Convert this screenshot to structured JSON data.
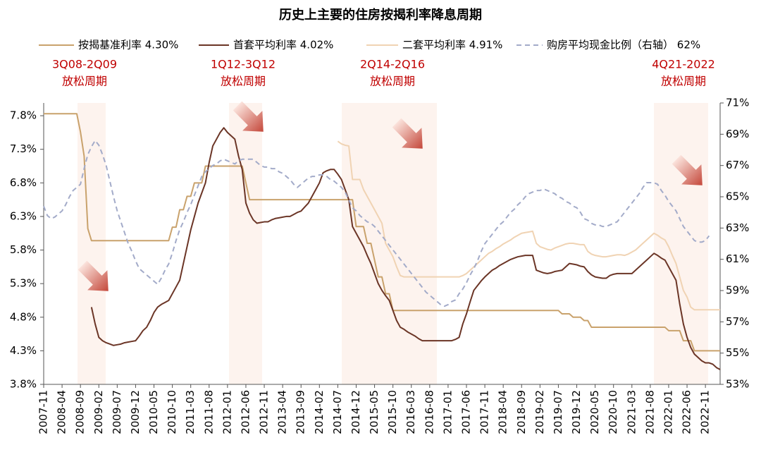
{
  "chart_data": {
    "type": "line",
    "title": "历史上主要的住房按揭利率降息周期",
    "categories": [
      "2007-11",
      null,
      null,
      null,
      null,
      "2008-04",
      null,
      null,
      null,
      null,
      "2008-09",
      null,
      null,
      null,
      null,
      "2009-02",
      null,
      null,
      null,
      null,
      "2009-07",
      null,
      null,
      null,
      null,
      "2009-12",
      null,
      null,
      null,
      null,
      "2010-05",
      null,
      null,
      null,
      null,
      "2010-10",
      null,
      null,
      null,
      null,
      "2011-03",
      null,
      null,
      null,
      null,
      "2011-08",
      null,
      null,
      null,
      null,
      "2012-01",
      null,
      null,
      null,
      null,
      "2012-06",
      null,
      null,
      null,
      null,
      "2012-11",
      null,
      null,
      null,
      null,
      "2013-04",
      null,
      null,
      null,
      null,
      "2013-09",
      null,
      null,
      null,
      null,
      "2014-02",
      null,
      null,
      null,
      null,
      "2014-07",
      null,
      null,
      null,
      null,
      "2014-12",
      null,
      null,
      null,
      null,
      "2015-05",
      null,
      null,
      null,
      null,
      "2015-10",
      null,
      null,
      null,
      null,
      "2016-03",
      null,
      null,
      null,
      null,
      "2016-08",
      null,
      null,
      null,
      null,
      "2017-01",
      null,
      null,
      null,
      null,
      "2017-06",
      null,
      null,
      null,
      null,
      "2017-11",
      null,
      null,
      null,
      null,
      "2018-04",
      null,
      null,
      null,
      null,
      "2018-09",
      null,
      null,
      null,
      null,
      "2019-02",
      null,
      null,
      null,
      null,
      "2019-07",
      null,
      null,
      null,
      null,
      "2019-12",
      null,
      null,
      null,
      null,
      "2020-05",
      null,
      null,
      null,
      null,
      "2020-10",
      null,
      null,
      null,
      null,
      "2021-03",
      null,
      null,
      null,
      null,
      "2021-08",
      null,
      null,
      null,
      null,
      "2022-01",
      null,
      null,
      null,
      null,
      "2022-06",
      null,
      null,
      null,
      null,
      "2022-11",
      null,
      null,
      null,
      null
    ],
    "series": [
      {
        "name": "按揭基准利率 4.30%",
        "color": "#c9a26c",
        "values": [
          7.83,
          7.83,
          7.83,
          7.83,
          7.83,
          7.83,
          7.83,
          7.83,
          7.83,
          7.83,
          7.56,
          7.2,
          6.12,
          5.94,
          5.94,
          5.94,
          5.94,
          5.94,
          5.94,
          5.94,
          5.94,
          5.94,
          5.94,
          5.94,
          5.94,
          5.94,
          5.94,
          5.94,
          5.94,
          5.94,
          5.94,
          5.94,
          5.94,
          5.94,
          5.94,
          6.14,
          6.14,
          6.4,
          6.4,
          6.6,
          6.6,
          6.8,
          6.8,
          6.8,
          7.05,
          7.05,
          7.05,
          7.05,
          7.05,
          7.05,
          7.05,
          7.05,
          7.05,
          7.05,
          7.05,
          6.8,
          6.55,
          6.55,
          6.55,
          6.55,
          6.55,
          6.55,
          6.55,
          6.55,
          6.55,
          6.55,
          6.55,
          6.55,
          6.55,
          6.55,
          6.55,
          6.55,
          6.55,
          6.55,
          6.55,
          6.55,
          6.55,
          6.55,
          6.55,
          6.55,
          6.55,
          6.55,
          6.55,
          6.55,
          6.55,
          6.15,
          6.15,
          6.15,
          5.9,
          5.9,
          5.65,
          5.4,
          5.4,
          5.15,
          5.15,
          4.9,
          4.9,
          4.9,
          4.9,
          4.9,
          4.9,
          4.9,
          4.9,
          4.9,
          4.9,
          4.9,
          4.9,
          4.9,
          4.9,
          4.9,
          4.9,
          4.9,
          4.9,
          4.9,
          4.9,
          4.9,
          4.9,
          4.9,
          4.9,
          4.9,
          4.9,
          4.9,
          4.9,
          4.9,
          4.9,
          4.9,
          4.9,
          4.9,
          4.9,
          4.9,
          4.9,
          4.9,
          4.9,
          4.9,
          4.9,
          4.9,
          4.9,
          4.9,
          4.9,
          4.9,
          4.9,
          4.85,
          4.85,
          4.85,
          4.8,
          4.8,
          4.8,
          4.75,
          4.75,
          4.65,
          4.65,
          4.65,
          4.65,
          4.65,
          4.65,
          4.65,
          4.65,
          4.65,
          4.65,
          4.65,
          4.65,
          4.65,
          4.65,
          4.65,
          4.65,
          4.65,
          4.65,
          4.65,
          4.65,
          4.65,
          4.6,
          4.6,
          4.6,
          4.6,
          4.45,
          4.45,
          4.45,
          4.3,
          4.3,
          4.3,
          4.3,
          4.3,
          4.3,
          4.3,
          4.3
        ]
      },
      {
        "name": "首套平均利率 4.02%",
        "color": "#6b3526",
        "values": [
          null,
          null,
          null,
          null,
          null,
          null,
          null,
          null,
          null,
          null,
          null,
          null,
          null,
          4.95,
          4.7,
          4.5,
          4.45,
          4.42,
          4.4,
          4.38,
          4.39,
          4.4,
          4.42,
          4.43,
          4.44,
          4.45,
          4.52,
          4.6,
          4.65,
          4.75,
          4.87,
          4.95,
          4.99,
          5.02,
          5.05,
          5.15,
          5.25,
          5.35,
          5.6,
          5.85,
          6.1,
          6.3,
          6.5,
          6.65,
          6.8,
          7.1,
          7.35,
          7.45,
          7.55,
          7.62,
          7.55,
          7.5,
          7.45,
          7.2,
          7.0,
          6.5,
          6.35,
          6.25,
          6.2,
          6.21,
          6.22,
          6.22,
          6.25,
          6.27,
          6.28,
          6.29,
          6.3,
          6.3,
          6.33,
          6.36,
          6.38,
          6.44,
          6.5,
          6.6,
          6.7,
          6.8,
          6.95,
          6.98,
          7.0,
          7.0,
          6.93,
          6.85,
          6.7,
          6.55,
          6.15,
          6.05,
          5.95,
          5.85,
          5.72,
          5.6,
          5.45,
          5.3,
          5.2,
          5.12,
          5.05,
          4.9,
          4.75,
          4.65,
          4.62,
          4.58,
          4.55,
          4.52,
          4.48,
          4.45,
          4.45,
          4.45,
          4.45,
          4.45,
          4.45,
          4.45,
          4.45,
          4.45,
          4.47,
          4.5,
          4.7,
          4.85,
          5.03,
          5.2,
          5.27,
          5.34,
          5.4,
          5.45,
          5.5,
          5.53,
          5.57,
          5.6,
          5.63,
          5.66,
          5.68,
          5.7,
          5.71,
          5.72,
          5.72,
          5.72,
          5.5,
          5.48,
          5.46,
          5.45,
          5.46,
          5.48,
          5.49,
          5.5,
          5.55,
          5.6,
          5.59,
          5.58,
          5.56,
          5.55,
          5.48,
          5.43,
          5.4,
          5.39,
          5.38,
          5.38,
          5.42,
          5.44,
          5.45,
          5.45,
          5.45,
          5.45,
          5.45,
          5.5,
          5.55,
          5.6,
          5.65,
          5.7,
          5.75,
          5.72,
          5.68,
          5.65,
          5.55,
          5.45,
          5.35,
          5.0,
          4.7,
          4.5,
          4.35,
          4.25,
          4.2,
          4.15,
          4.12,
          4.12,
          4.1,
          4.05,
          4.02
        ]
      },
      {
        "name": "二套平均利率 4.91%",
        "color": "#f0d3b3",
        "values": [
          null,
          null,
          null,
          null,
          null,
          null,
          null,
          null,
          null,
          null,
          null,
          null,
          null,
          null,
          null,
          null,
          null,
          null,
          null,
          null,
          null,
          null,
          null,
          null,
          null,
          null,
          null,
          null,
          null,
          null,
          null,
          null,
          null,
          null,
          null,
          null,
          null,
          null,
          null,
          null,
          null,
          null,
          null,
          null,
          null,
          null,
          null,
          null,
          null,
          null,
          null,
          null,
          null,
          null,
          null,
          null,
          null,
          null,
          null,
          null,
          null,
          null,
          null,
          null,
          null,
          null,
          null,
          null,
          null,
          null,
          null,
          null,
          null,
          null,
          null,
          null,
          null,
          null,
          null,
          null,
          7.42,
          7.38,
          7.36,
          7.35,
          6.85,
          6.85,
          6.85,
          6.7,
          6.6,
          6.5,
          6.4,
          6.3,
          6.2,
          5.9,
          5.8,
          5.7,
          5.55,
          5.42,
          5.4,
          5.4,
          5.4,
          5.4,
          5.4,
          5.4,
          5.4,
          5.4,
          5.4,
          5.4,
          5.4,
          5.4,
          5.4,
          5.4,
          5.4,
          5.4,
          5.42,
          5.45,
          5.5,
          5.55,
          5.6,
          5.65,
          5.7,
          5.75,
          5.78,
          5.82,
          5.85,
          5.89,
          5.92,
          5.95,
          5.99,
          6.02,
          6.05,
          6.06,
          6.07,
          6.08,
          5.9,
          5.85,
          5.83,
          5.81,
          5.8,
          5.83,
          5.85,
          5.87,
          5.89,
          5.9,
          5.9,
          5.89,
          5.88,
          5.88,
          5.78,
          5.74,
          5.72,
          5.71,
          5.7,
          5.7,
          5.71,
          5.72,
          5.73,
          5.73,
          5.72,
          5.74,
          5.77,
          5.8,
          5.85,
          5.9,
          5.95,
          6.0,
          6.05,
          6.02,
          5.98,
          5.95,
          5.85,
          5.72,
          5.6,
          5.4,
          5.2,
          5.1,
          4.95,
          4.91,
          4.91,
          4.91,
          4.91,
          4.91,
          4.91,
          4.91,
          4.91
        ]
      },
      {
        "name": "购房平均现金比例（右轴） 62%",
        "color": "#a3abc9",
        "dashed": true,
        "axis": "y2",
        "values": [
          64.4,
          63.8,
          63.6,
          63.7,
          63.9,
          64.1,
          64.5,
          65.0,
          65.4,
          65.6,
          65.8,
          66.8,
          67.7,
          68.2,
          68.6,
          68.3,
          67.7,
          67.0,
          66.0,
          65.0,
          64.1,
          63.4,
          62.7,
          62.0,
          61.5,
          60.9,
          60.4,
          60.2,
          60.0,
          59.8,
          59.6,
          59.4,
          59.8,
          60.3,
          60.7,
          61.4,
          62.2,
          62.9,
          63.4,
          64.0,
          64.5,
          65.1,
          65.7,
          66.3,
          66.6,
          66.8,
          67.0,
          67.1,
          67.3,
          67.4,
          67.3,
          67.2,
          67.1,
          67.3,
          67.4,
          67.4,
          67.4,
          67.4,
          67.2,
          67.0,
          66.9,
          66.9,
          66.8,
          66.8,
          66.6,
          66.5,
          66.3,
          66.1,
          65.8,
          65.6,
          65.8,
          66.0,
          66.2,
          66.3,
          66.3,
          66.4,
          66.4,
          66.3,
          66.1,
          66.0,
          65.8,
          65.6,
          65.3,
          64.8,
          64.3,
          64.1,
          63.8,
          63.6,
          63.4,
          63.3,
          63.1,
          62.8,
          62.5,
          62.2,
          61.9,
          61.6,
          61.3,
          61.0,
          60.7,
          60.4,
          60.1,
          59.8,
          59.5,
          59.2,
          58.9,
          58.7,
          58.5,
          58.3,
          58.1,
          58.0,
          58.1,
          58.3,
          58.4,
          58.8,
          59.1,
          59.5,
          60.0,
          60.4,
          60.9,
          61.5,
          62.0,
          62.3,
          62.6,
          62.9,
          63.2,
          63.4,
          63.7,
          64.0,
          64.2,
          64.5,
          64.7,
          65.0,
          65.2,
          65.3,
          65.4,
          65.4,
          65.5,
          65.4,
          65.3,
          65.2,
          65.0,
          64.9,
          64.7,
          64.6,
          64.4,
          64.3,
          64.0,
          63.6,
          63.5,
          63.3,
          63.2,
          63.2,
          63.1,
          63.1,
          63.2,
          63.3,
          63.4,
          63.7,
          64.0,
          64.3,
          64.6,
          64.9,
          65.2,
          65.6,
          65.9,
          65.9,
          65.9,
          65.8,
          65.4,
          65.1,
          64.7,
          64.4,
          64.1,
          63.6,
          63.1,
          62.8,
          62.5,
          62.2,
          62.1,
          62.1,
          62.2,
          62.5,
          null,
          null,
          null
        ]
      }
    ],
    "ylim": [
      3.8,
      7.99
    ],
    "yticks": [
      {
        "value": 3.8,
        "label": "3.8%"
      },
      {
        "value": 4.3,
        "label": "4.3%"
      },
      {
        "value": 4.8,
        "label": "4.8%"
      },
      {
        "value": 5.3,
        "label": "5.3%"
      },
      {
        "value": 5.8,
        "label": "5.8%"
      },
      {
        "value": 6.3,
        "label": "6.3%"
      },
      {
        "value": 6.8,
        "label": "6.8%"
      },
      {
        "value": 7.3,
        "label": "7.3%"
      },
      {
        "value": 7.8,
        "label": "7.8%"
      }
    ],
    "y2lim": [
      53,
      71
    ],
    "y2ticks": [
      {
        "value": 53,
        "label": "53%"
      },
      {
        "value": 55,
        "label": "55%"
      },
      {
        "value": 57,
        "label": "57%"
      },
      {
        "value": 59,
        "label": "59%"
      },
      {
        "value": 61,
        "label": "61%"
      },
      {
        "value": 63,
        "label": "63%"
      },
      {
        "value": 65,
        "label": "65%"
      },
      {
        "value": 67,
        "label": "67%"
      },
      {
        "value": 69,
        "label": "69%"
      },
      {
        "value": 71,
        "label": "71%"
      }
    ],
    "grid": false,
    "legend": "top",
    "annotations": [
      {
        "text": "3Q08-2Q09",
        "subtext": "放松周期"
      },
      {
        "text": "1Q12-3Q12",
        "subtext": "放松周期"
      },
      {
        "text": "2Q14-2Q16",
        "subtext": "放松周期"
      },
      {
        "text": "4Q21-2022",
        "subtext": "放松周期"
      }
    ]
  }
}
